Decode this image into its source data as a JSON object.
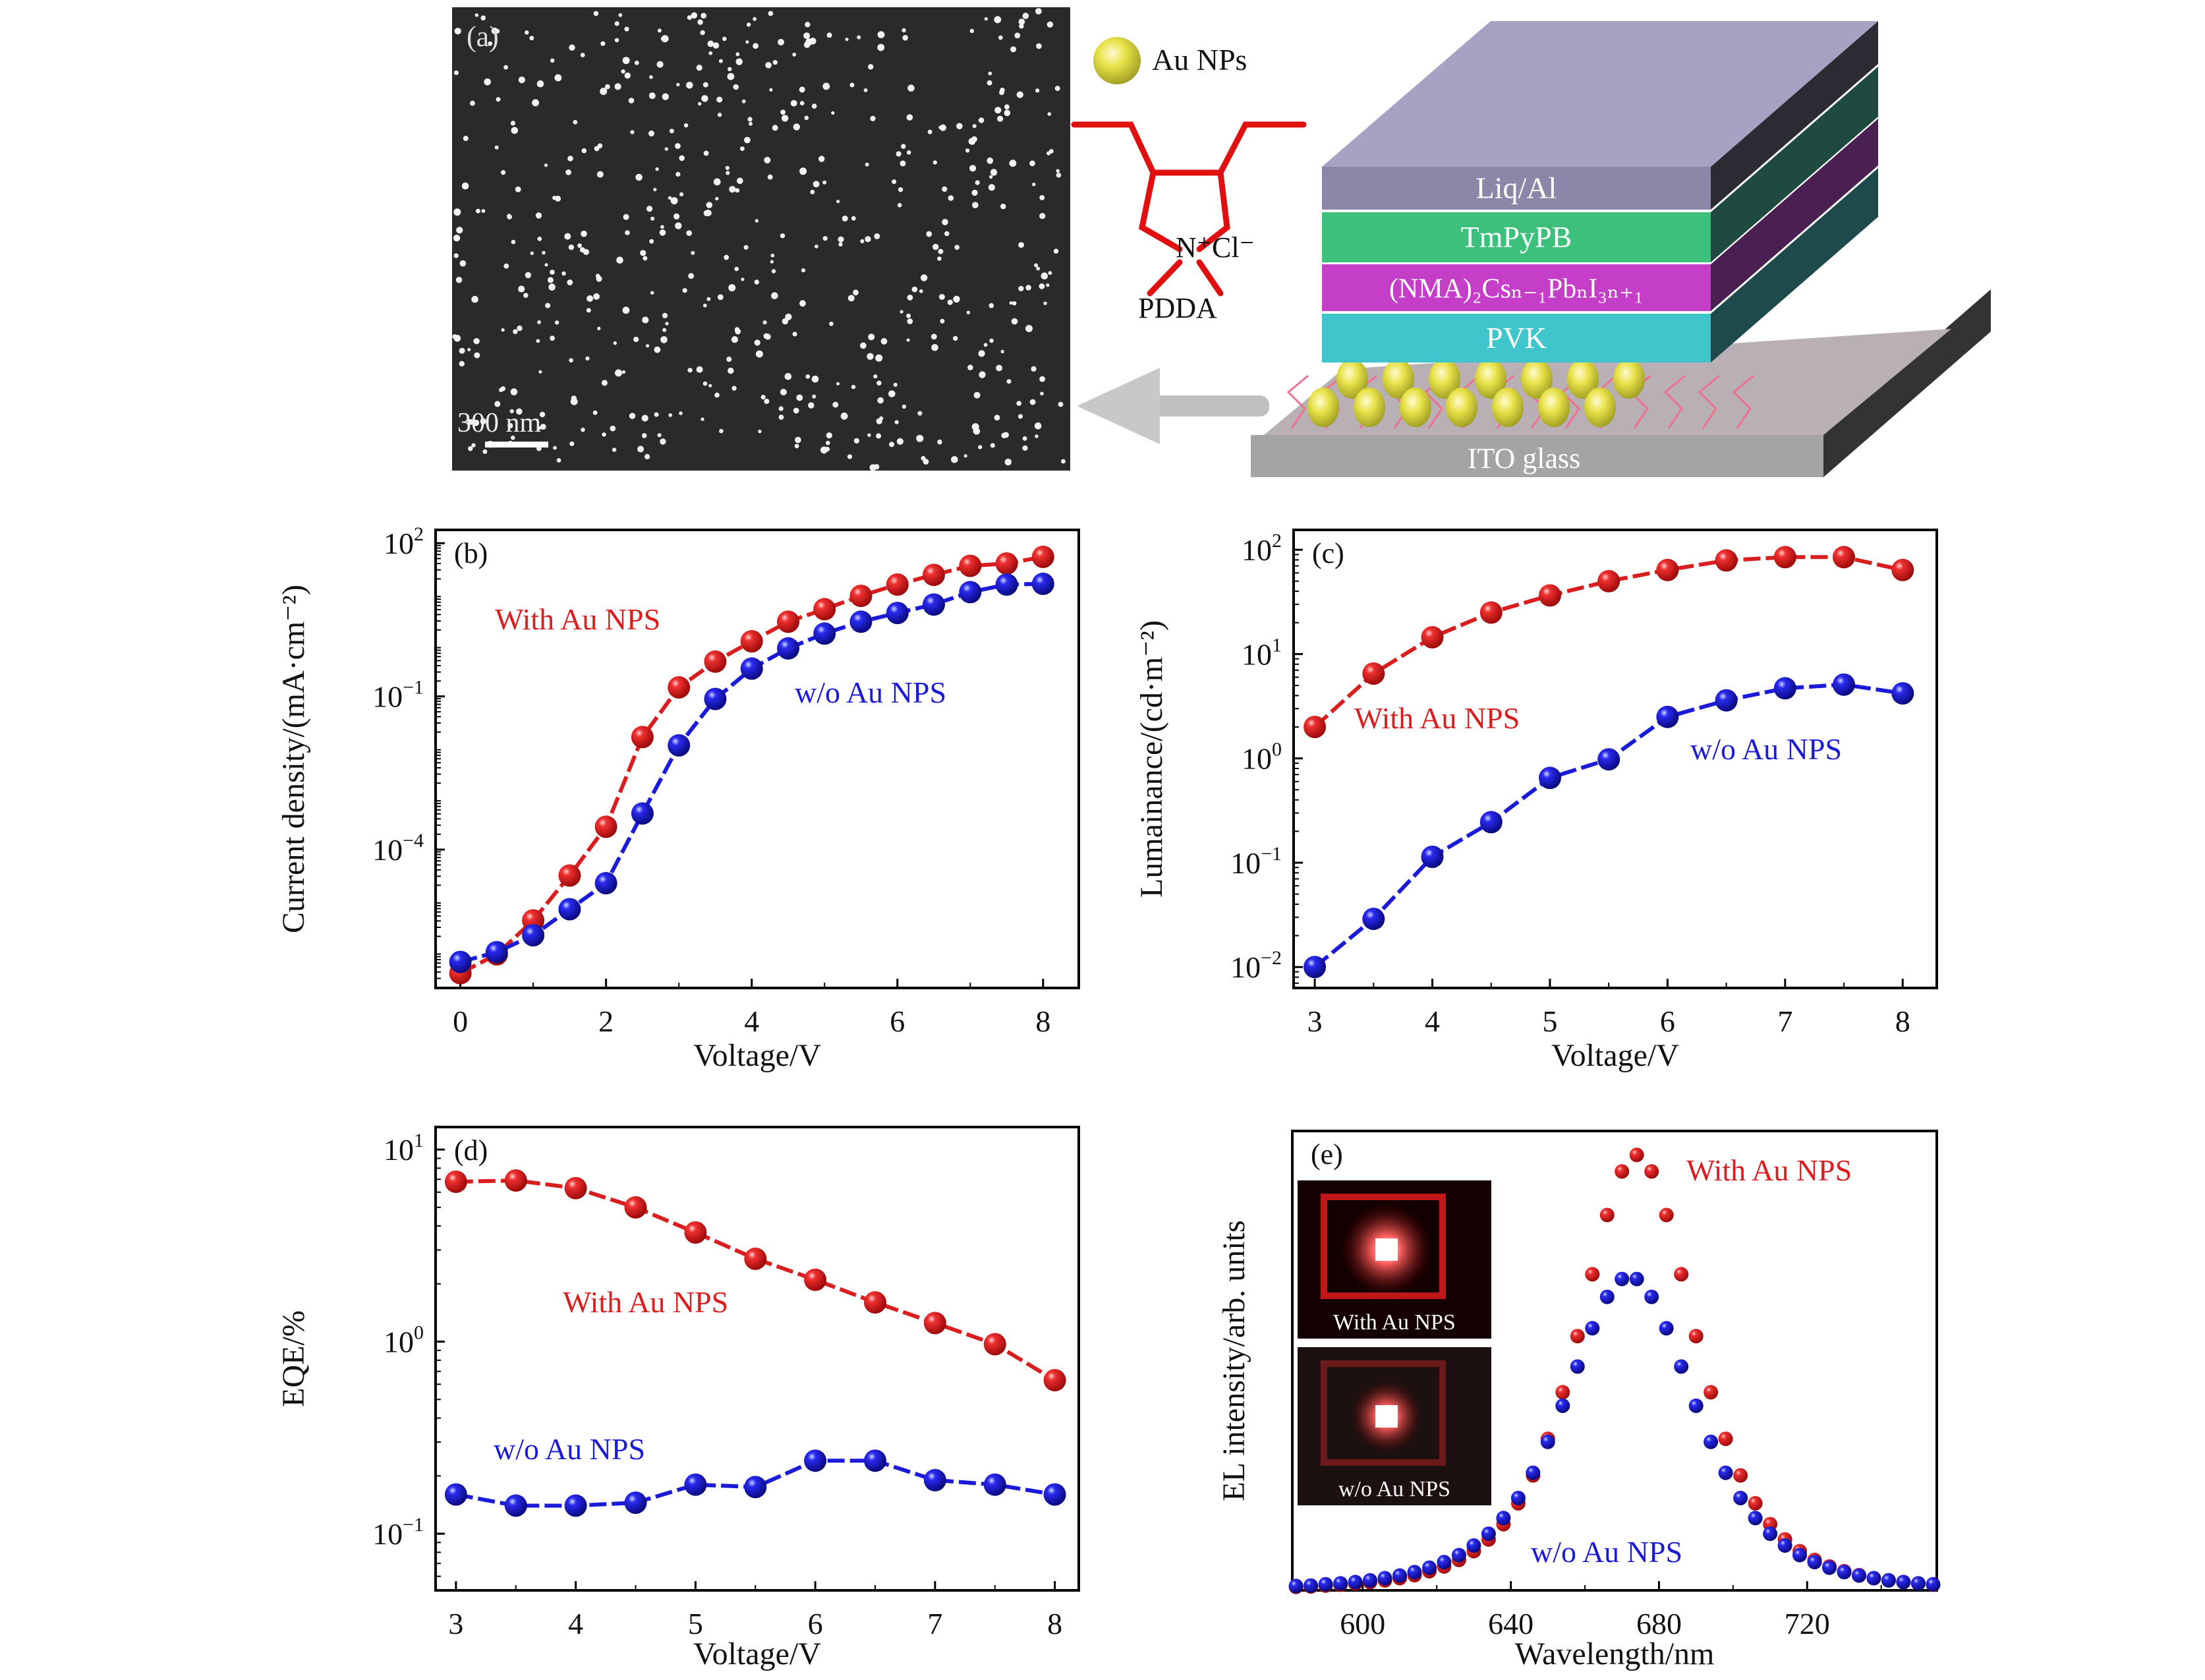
{
  "panel_a": {
    "label": "(a)",
    "scale_bar": "300 nm",
    "legend_au": "Au NPs",
    "pdda_charge": "N⁺Cl⁻",
    "pdda_label": "PDDA",
    "layers": [
      {
        "label": "Liq/Al",
        "color": "#8c87a8",
        "side": "#2b2b33"
      },
      {
        "label": "TmPyPB",
        "color": "#3cc07c",
        "side": "#1f4a40"
      },
      {
        "label": "(NMA)₂Csₙ₋₁PbₙI₃ₙ₊₁",
        "color": "#c43ec8",
        "side": "#4a2052"
      },
      {
        "label": "PVK",
        "color": "#3ec6cc",
        "side": "#1e4a4c"
      },
      {
        "label": "ITO glass",
        "color": "#a4a4a4",
        "side": "#333333"
      }
    ],
    "colors": {
      "sem_bg": "#2a2a2a",
      "pdda": "#e01010",
      "au": "#e3e04a",
      "arrow": "#c0c0c0"
    }
  },
  "chart_data": [
    {
      "id": "b",
      "type": "line",
      "panel_label": "(b)",
      "xlabel": "Voltage/V",
      "ylabel": "Current density/(mA·cm⁻²)",
      "yscale": "log",
      "xlim": [
        -0.34,
        8.49
      ],
      "ylim": [
        1.95e-07,
        182
      ],
      "xticks": [
        0,
        2,
        4,
        6,
        8
      ],
      "yticks": [
        {
          "value": 100,
          "base": "10",
          "exp": "2"
        },
        {
          "value": 0.1,
          "base": "10",
          "exp": "−1"
        },
        {
          "value": 0.0001,
          "base": "10",
          "exp": "−4"
        }
      ],
      "series": [
        {
          "name": "With Au NPS",
          "color": "#d81e1e",
          "x": [
            0,
            0.5,
            1,
            1.5,
            2,
            2.5,
            3,
            3.5,
            4,
            4.5,
            5,
            5.5,
            6,
            6.5,
            7,
            7.5,
            8
          ],
          "y": [
            3.8e-07,
            8.9e-07,
            4.1e-06,
            3.1e-05,
            0.00028,
            0.016,
            0.15,
            0.48,
            1.2,
            2.9,
            5.1,
            9.3,
            15.5,
            24,
            36,
            40,
            54
          ]
        },
        {
          "name": "w/o Au NPS",
          "color": "#1a1ad8",
          "x": [
            0,
            0.5,
            1,
            1.5,
            2,
            2.5,
            3,
            3.5,
            4,
            4.5,
            5,
            5.5,
            6,
            6.5,
            7,
            7.5,
            8
          ],
          "y": [
            6.3e-07,
            9.8e-07,
            2.1e-06,
            6.8e-06,
            2.2e-05,
            0.00051,
            0.011,
            0.089,
            0.35,
            0.87,
            1.7,
            2.9,
            4.3,
            6.3,
            11,
            15.5,
            16
          ]
        }
      ]
    },
    {
      "id": "c",
      "type": "line",
      "panel_label": "(c)",
      "xlabel": "Voltage/V",
      "ylabel": "Lumainance/(cd·m⁻²)",
      "yscale": "log",
      "xlim": [
        2.82,
        8.29
      ],
      "ylim": [
        0.0063,
        155
      ],
      "xticks": [
        3,
        4,
        5,
        6,
        7,
        8
      ],
      "yticks": [
        {
          "value": 100,
          "base": "10",
          "exp": "2"
        },
        {
          "value": 10,
          "base": "10",
          "exp": "1"
        },
        {
          "value": 1,
          "base": "10",
          "exp": "0"
        },
        {
          "value": 0.1,
          "base": "10",
          "exp": "−1"
        },
        {
          "value": 0.01,
          "base": "10",
          "exp": "−2"
        }
      ],
      "series": [
        {
          "name": "With Au NPS",
          "color": "#d81e1e",
          "x": [
            3,
            3.5,
            4,
            4.5,
            5,
            5.5,
            6,
            6.5,
            7,
            7.5,
            8
          ],
          "y": [
            2.0,
            6.5,
            14.5,
            25,
            36.5,
            50,
            64,
            79,
            85,
            85,
            64
          ]
        },
        {
          "name": "w/o Au NPS",
          "color": "#1a1ad8",
          "x": [
            3,
            3.5,
            4,
            4.5,
            5,
            5.5,
            6,
            6.5,
            7,
            7.5,
            8
          ],
          "y": [
            0.01,
            0.029,
            0.114,
            0.245,
            0.65,
            0.98,
            2.5,
            3.6,
            4.7,
            5.1,
            4.2
          ]
        }
      ]
    },
    {
      "id": "d",
      "type": "line",
      "panel_label": "(d)",
      "xlabel": "Voltage/V",
      "ylabel": "EQE/%",
      "yscale": "log",
      "xlim": [
        2.83,
        8.2
      ],
      "ylim": [
        0.0507,
        13.1
      ],
      "xticks": [
        3,
        4,
        5,
        6,
        7,
        8
      ],
      "yticks": [
        {
          "value": 10,
          "base": "10",
          "exp": "1"
        },
        {
          "value": 1,
          "base": "10",
          "exp": "0"
        },
        {
          "value": 0.1,
          "base": "10",
          "exp": "−1"
        }
      ],
      "series": [
        {
          "name": "With Au NPS",
          "color": "#d81e1e",
          "x": [
            3,
            3.5,
            4,
            4.5,
            5,
            5.5,
            6,
            6.5,
            7,
            7.5,
            8
          ],
          "y": [
            6.8,
            6.9,
            6.3,
            5.0,
            3.7,
            2.7,
            2.1,
            1.6,
            1.25,
            0.97,
            0.63
          ]
        },
        {
          "name": "w/o Au NPS",
          "color": "#1a1ad8",
          "x": [
            3,
            3.5,
            4,
            4.5,
            5,
            5.5,
            6,
            6.5,
            7,
            7.5,
            8
          ],
          "y": [
            0.16,
            0.14,
            0.14,
            0.145,
            0.18,
            0.175,
            0.24,
            0.24,
            0.19,
            0.18,
            0.16
          ]
        }
      ]
    },
    {
      "id": "e",
      "type": "scatter",
      "panel_label": "(e)",
      "xlabel": "Wavelength/nm",
      "ylabel": "EL intensity/arb. units",
      "yscale": "linear",
      "xlim": [
        581,
        755
      ],
      "ylim": [
        0,
        1.055
      ],
      "xticks": [
        600,
        640,
        680,
        720
      ],
      "yticks": [],
      "insets": [
        "With Au NPS",
        "w/o Au NPS"
      ],
      "series": [
        {
          "name": "With Au NPS",
          "color": "#d81e1e",
          "x": [
            582,
            586,
            590,
            594,
            598,
            602,
            606,
            610,
            614,
            618,
            622,
            626,
            630,
            634,
            638,
            642,
            646,
            650,
            654,
            658,
            662,
            666,
            670,
            674,
            678,
            682,
            686,
            690,
            694,
            698,
            702,
            706,
            710,
            714,
            718,
            722,
            726,
            730,
            734,
            738,
            742,
            746,
            750,
            754
          ],
          "y": [
            0.008,
            0.009,
            0.011,
            0.013,
            0.016,
            0.019,
            0.023,
            0.028,
            0.035,
            0.044,
            0.055,
            0.07,
            0.09,
            0.117,
            0.152,
            0.2,
            0.264,
            0.348,
            0.455,
            0.584,
            0.726,
            0.862,
            0.962,
            1.0,
            0.962,
            0.862,
            0.726,
            0.584,
            0.455,
            0.348,
            0.264,
            0.2,
            0.152,
            0.117,
            0.09,
            0.07,
            0.055,
            0.044,
            0.035,
            0.028,
            0.023,
            0.019,
            0.016,
            0.013
          ]
        },
        {
          "name": "w/o Au NPS",
          "color": "#1a1ad8",
          "x": [
            582,
            586,
            590,
            594,
            598,
            602,
            606,
            610,
            614,
            618,
            622,
            626,
            630,
            634,
            638,
            642,
            646,
            650,
            654,
            658,
            662,
            666,
            670,
            674,
            678,
            682,
            686,
            690,
            694,
            698,
            702,
            706,
            710,
            714,
            718,
            722,
            726,
            730,
            734,
            738,
            742,
            746,
            750,
            754
          ],
          "y": [
            0.01,
            0.011,
            0.014,
            0.016,
            0.019,
            0.023,
            0.028,
            0.034,
            0.042,
            0.052,
            0.065,
            0.081,
            0.103,
            0.13,
            0.166,
            0.212,
            0.27,
            0.341,
            0.424,
            0.514,
            0.602,
            0.674,
            0.715,
            0.715,
            0.674,
            0.602,
            0.514,
            0.424,
            0.341,
            0.27,
            0.212,
            0.166,
            0.13,
            0.103,
            0.081,
            0.065,
            0.052,
            0.042,
            0.034,
            0.028,
            0.023,
            0.019,
            0.016,
            0.014
          ]
        }
      ]
    }
  ]
}
